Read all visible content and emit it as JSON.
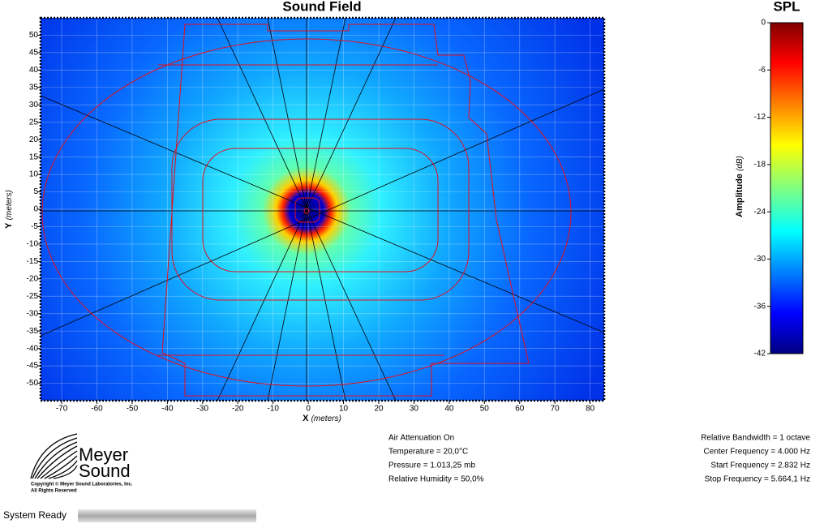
{
  "chart_data": [
    {
      "type": "heatmap",
      "title": "Sound Field",
      "xlabel": "X",
      "xlabel_unit": "(meters)",
      "ylabel": "Y",
      "ylabel_unit": "(meters)",
      "xlim": [
        -76,
        84
      ],
      "ylim": [
        -55,
        55
      ],
      "xticks": [
        -70,
        -60,
        -50,
        -40,
        -30,
        -20,
        -10,
        0,
        10,
        20,
        30,
        40,
        50,
        60,
        70,
        80
      ],
      "yticks": [
        -50,
        -45,
        -40,
        -35,
        -30,
        -25,
        -20,
        -15,
        -10,
        -5,
        0,
        5,
        10,
        15,
        20,
        25,
        30,
        35,
        40,
        45,
        50
      ],
      "grid": true
    },
    {
      "type": "colorbar",
      "title": "SPL",
      "ylabel": "Amplitude",
      "ylabel_unit": "(dB)",
      "ylim": [
        -42,
        0
      ],
      "yticks": [
        0,
        -6,
        -12,
        -18,
        -24,
        -30,
        -36,
        -42
      ]
    }
  ],
  "air": [
    "Air Attenuation On",
    "Temperature = 20,0°C",
    "Pressure = 1.013,25  mb",
    "Relative Humidity = 50,0%"
  ],
  "bandwidth": [
    "Relative Bandwidth = 1 octave",
    "Center Frequency = 4.000 Hz",
    "Start Frequency = 2.832 Hz",
    "Stop Frequency = 5.664,1 Hz"
  ],
  "logo": {
    "line1": "Meyer",
    "line2": "Sound",
    "copyright": "Copyright © Meyer Sound Laboratories, Inc.",
    "rights": "All Rights Reserved"
  },
  "status": "System Ready"
}
